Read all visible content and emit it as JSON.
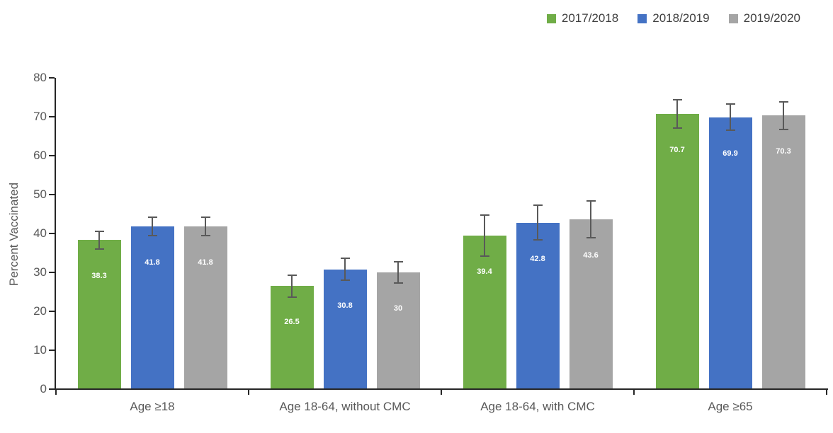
{
  "chart_data": {
    "type": "bar",
    "title": "",
    "ylabel": "Percent Vaccinated",
    "xlabel": "",
    "ylim": [
      0,
      80
    ],
    "yticks": [
      0,
      10,
      20,
      30,
      40,
      50,
      60,
      70,
      80
    ],
    "grid": false,
    "legend_position": "top-right",
    "error_bars": true,
    "categories": [
      "Age ≥18",
      "Age 18-64, without CMC",
      "Age 18-64, with CMC",
      "Age ≥65"
    ],
    "series": [
      {
        "name": "2017/2018",
        "color": "#70AD47",
        "values": [
          38.3,
          26.5,
          39.4,
          70.7
        ],
        "labels": [
          "38.3",
          "26.5",
          "39.4",
          "70.7"
        ],
        "errors": [
          2.3,
          2.8,
          5.3,
          3.6
        ]
      },
      {
        "name": "2018/2019",
        "color": "#4472C4",
        "values": [
          41.8,
          30.8,
          42.8,
          69.9
        ],
        "labels": [
          "41.8",
          "30.8",
          "42.8",
          "69.9"
        ],
        "errors": [
          2.4,
          2.8,
          4.4,
          3.4
        ]
      },
      {
        "name": "2019/2020",
        "color": "#A5A5A5",
        "values": [
          41.8,
          30.0,
          43.6,
          70.3
        ],
        "labels": [
          "41.8",
          "30",
          "43.6",
          "70.3"
        ],
        "errors": [
          2.3,
          2.7,
          4.7,
          3.5
        ]
      }
    ],
    "colors": {
      "axis_line": "#262626",
      "axis_text": "#595959",
      "legend_text": "#404040",
      "error_bar": "#595959",
      "value_label_text": "#FFFFFF",
      "background": "#FFFFFF"
    }
  }
}
